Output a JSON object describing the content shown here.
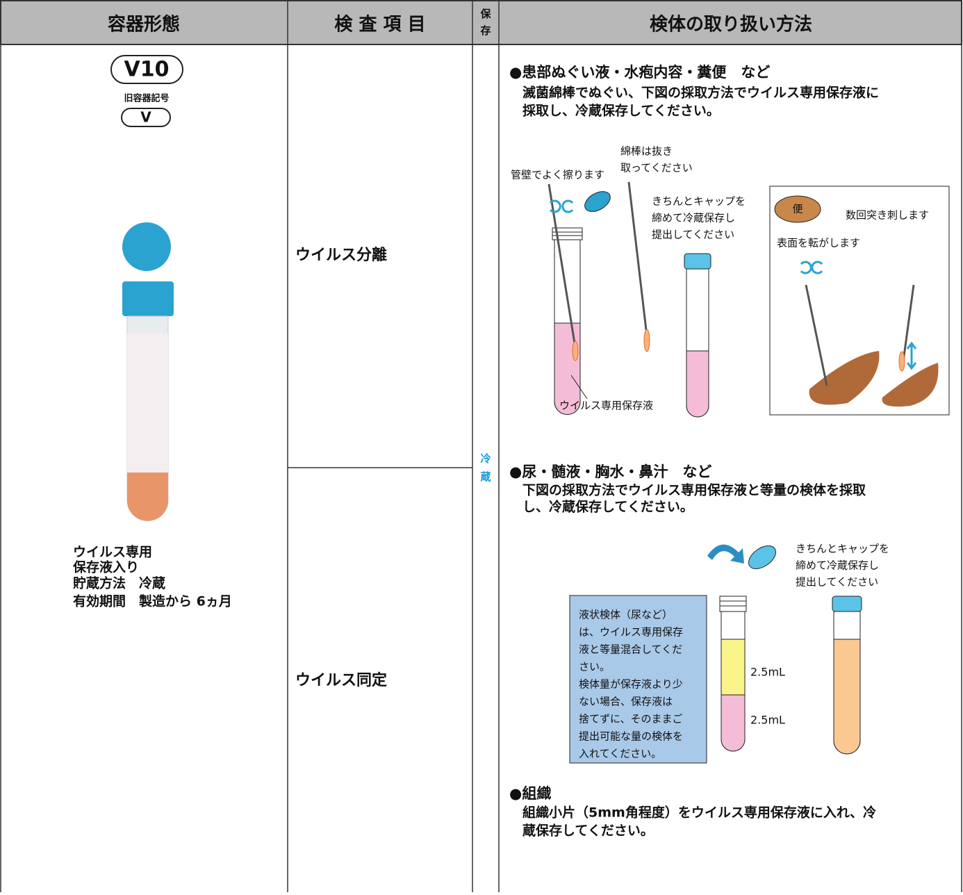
{
  "header": {
    "columns": [
      "容器形態",
      "検 査 項 目",
      "保存",
      "検体の取り扱い方法"
    ]
  },
  "container": {
    "code": "V10",
    "old_label": "旧容器記号",
    "old_code": "V",
    "notes": [
      "ウイルス専用",
      "保存液入り",
      "貯蔵方法　冷蔵",
      "有効期間　製造から 6ヵ月"
    ]
  },
  "tests": [
    "ウイルス分離",
    "ウイルス同定"
  ],
  "storage": "冷蔵",
  "sections": [
    {
      "heading": "●患部ぬぐい液・水疱内容・糞便　など",
      "body": [
        "滅菌綿棒でぬぐい、下図の採取方法でウイルス専用保存液に",
        "採取し、冷蔵保存してください。"
      ],
      "figure": {
        "rub": "管壁でよく擦ります",
        "remove": [
          "綿棒は抜き",
          "取ってください"
        ],
        "cap": [
          "きちんとキャップを",
          "締めて冷蔵保存し",
          "提出してください"
        ],
        "liquid": "ウイルス専用保存液",
        "stool": "便",
        "stab": "数回突き刺します",
        "roll": "表面を転がします"
      }
    },
    {
      "heading": "●尿・髄液・胸水・鼻汁　など",
      "body": [
        "下図の採取方法でウイルス専用保存液と等量の検体を採取",
        "し、冷蔵保存してください。"
      ],
      "figure": {
        "cap": [
          "きちんとキャップを",
          "締めて冷蔵保存し",
          "提出してください"
        ],
        "note": [
          "液状検体（尿など）",
          "は、ウイルス専用保存",
          "液と等量混合してくだ",
          "さい。",
          "検体量が保存液より少",
          "ない場合、保存液は",
          "捨てずに、そのままご",
          "提出可能な量の検体を",
          "入れてください。"
        ],
        "upper": "2.5mL",
        "lower": "2.5mL"
      }
    },
    {
      "heading": "●組織",
      "body": [
        "組織小片（5mm角程度）をウイルス専用保存液に入れ、冷",
        "蔵保存してください。"
      ]
    }
  ]
}
